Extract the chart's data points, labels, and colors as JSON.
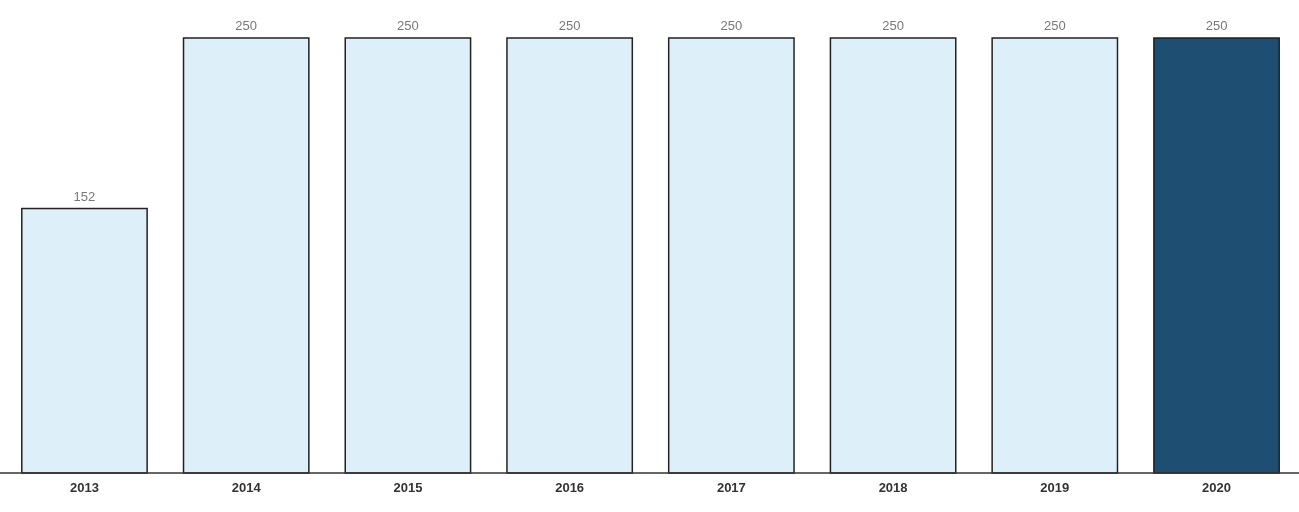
{
  "chart_data": {
    "type": "bar",
    "categories": [
      "2013",
      "2014",
      "2015",
      "2016",
      "2017",
      "2018",
      "2019",
      "2020"
    ],
    "values": [
      152,
      250,
      250,
      250,
      250,
      250,
      250,
      250
    ],
    "colors": [
      "#ddeff9",
      "#ddeff9",
      "#ddeff9",
      "#ddeff9",
      "#ddeff9",
      "#ddeff9",
      "#ddeff9",
      "#1e4f72"
    ],
    "data_labels": true
  }
}
